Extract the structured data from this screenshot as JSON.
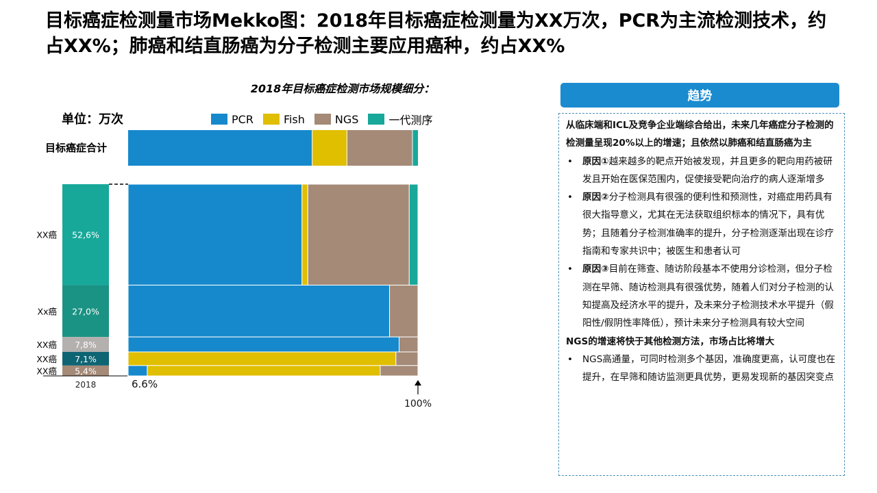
{
  "headline": "目标癌症检测量市场Mekko图：2018年目标癌症检测量为XX万次，PCR为主流检测技术，约占XX%；肺癌和结直肠癌为分子检测主要应用癌种，约占XX%",
  "colors": {
    "pcr": "#1689cc",
    "fish": "#e0be00",
    "ngs": "#a48a77",
    "sanger": "#17a89a",
    "accent": "#1b8bd0"
  },
  "chart_data": {
    "type": "mekko",
    "title": "2018年目标癌症检测市场规模细分：",
    "unit_label": "单位：万次",
    "legend": [
      "PCR",
      "Fish",
      "NGS",
      "一代测序"
    ],
    "total_row": {
      "label": "目标癌症合计",
      "shares": [
        0.635,
        0.12,
        0.226,
        0.019
      ]
    },
    "cancer_rows": [
      {
        "label": "XX癌",
        "share": 52.6,
        "share_label": "52,6%",
        "color": "#17a89a",
        "splits": [
          0.6,
          0.02,
          0.35,
          0.03
        ]
      },
      {
        "label": "Xx癌",
        "share": 27.0,
        "share_label": "27,0%",
        "color": "#1a9384",
        "splits": [
          0.902,
          0,
          0.098,
          0
        ]
      },
      {
        "label": "XX癌",
        "share": 7.8,
        "share_label": "7,8%",
        "color": "#b3b0ae",
        "splits": [
          0.935,
          0,
          0.065,
          0
        ]
      },
      {
        "label": "XX癌",
        "share": 7.1,
        "share_label": "7,1%",
        "color": "#0d6473",
        "splits": [
          0,
          0.924,
          0.076,
          0
        ]
      },
      {
        "label": "XX癌",
        "share": 5.4,
        "share_label": "5,4%",
        "color": "#a48a77",
        "splits": [
          0.066,
          0.804,
          0.13,
          0
        ]
      }
    ],
    "year_label": "2018",
    "x_start_label": "6.6%",
    "x_end_label": "100%"
  },
  "trend": {
    "title": "趋势",
    "intro": "从临床端和ICL及竞争企业端综合给出，未来几年癌症分子检测的检测量呈现20%以上的增速；且依然以肺癌和结直肠癌为主",
    "bullets": [
      {
        "lead": "原因①",
        "text": "越来越多的靶点开始被发现，并且更多的靶向用药被研发且开始在医保范围内，促使接受靶向治疗的病人逐渐增多"
      },
      {
        "lead": "原因②",
        "text": "分子检测具有很强的便利性和预测性，对癌症用药具有很大指导意义，尤其在无法获取组织标本的情况下，具有优势；且随着分子检测准确率的提升，分子检测逐渐出现在诊疗指南和专家共识中；被医生和患者认可"
      },
      {
        "lead": "原因③",
        "text": "目前在筛查、随访阶段基本不使用分诊检测，但分子检测在早筛、随访检测具有很强优势，随着人们对分子检测的认知提高及经济水平的提升，及未来分子检测技术水平提升（假阳性/假阴性率降低），预计未来分子检测具有较大空间"
      }
    ],
    "ngs_heading": "NGS的增速将快于其他检测方法，市场占比将增大",
    "ngs_bullets": [
      {
        "lead": "",
        "text": "NGS高通量，可同时检测多个基因，准确度更高，认可度也在提升，在早筛和随访监测更具优势，更易发现新的基因突变点"
      }
    ]
  }
}
